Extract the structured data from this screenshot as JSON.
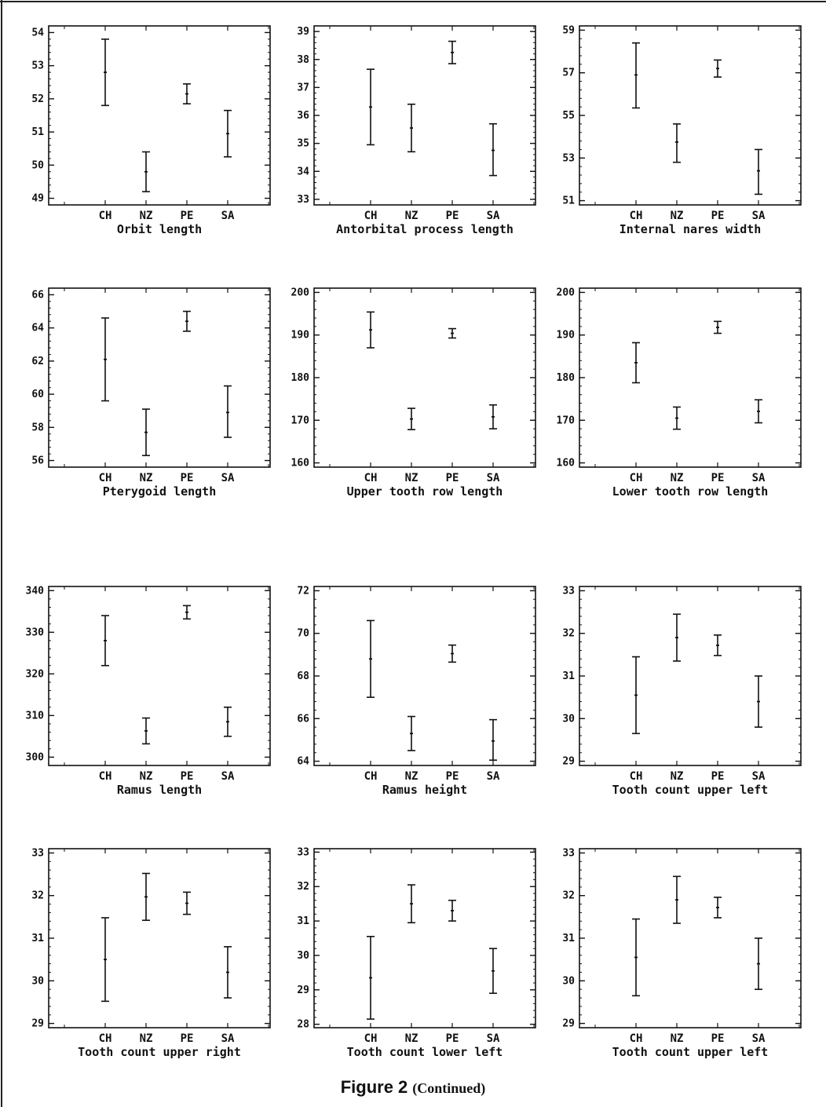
{
  "caption": {
    "title": "Figure 2",
    "suffix": "(Continued)"
  },
  "chart_data": [
    {
      "type": "errorbar",
      "xlabel": "Orbit length",
      "categories": [
        "CH",
        "NZ",
        "PE",
        "SA"
      ],
      "ylim": [
        48.8,
        54.2
      ],
      "yticks": [
        49,
        50,
        51,
        52,
        53,
        54
      ],
      "series": [
        {
          "mean": [
            52.8,
            49.8,
            52.15,
            50.95
          ],
          "low": [
            51.8,
            49.2,
            51.85,
            50.25
          ],
          "high": [
            53.8,
            50.4,
            52.45,
            51.65
          ]
        }
      ]
    },
    {
      "type": "errorbar",
      "xlabel": "Antorbital process length",
      "categories": [
        "CH",
        "NZ",
        "PE",
        "SA"
      ],
      "ylim": [
        32.8,
        39.2
      ],
      "yticks": [
        33,
        34,
        35,
        36,
        37,
        38,
        39
      ],
      "series": [
        {
          "mean": [
            36.3,
            35.55,
            38.25,
            34.75
          ],
          "low": [
            34.95,
            34.7,
            37.85,
            33.85
          ],
          "high": [
            37.65,
            36.4,
            38.65,
            35.7
          ]
        }
      ]
    },
    {
      "type": "errorbar",
      "xlabel": "Internal nares width",
      "categories": [
        "CH",
        "NZ",
        "PE",
        "SA"
      ],
      "ylim": [
        50.8,
        59.2
      ],
      "yticks": [
        51,
        53,
        55,
        57,
        59
      ],
      "series": [
        {
          "mean": [
            56.9,
            53.75,
            57.2,
            52.4
          ],
          "low": [
            55.35,
            52.8,
            56.8,
            51.3
          ],
          "high": [
            58.4,
            54.6,
            57.6,
            53.4
          ]
        }
      ]
    },
    {
      "type": "errorbar",
      "xlabel": "Pterygoid length",
      "categories": [
        "CH",
        "NZ",
        "PE",
        "SA"
      ],
      "ylim": [
        55.6,
        66.4
      ],
      "yticks": [
        56,
        58,
        60,
        62,
        64,
        66
      ],
      "series": [
        {
          "mean": [
            62.1,
            57.7,
            64.4,
            58.9
          ],
          "low": [
            59.6,
            56.3,
            63.8,
            57.4
          ],
          "high": [
            64.6,
            59.1,
            65.0,
            60.5
          ]
        }
      ]
    },
    {
      "type": "errorbar",
      "xlabel": "Upper tooth row length",
      "categories": [
        "CH",
        "NZ",
        "PE",
        "SA"
      ],
      "ylim": [
        159,
        201
      ],
      "yticks": [
        160,
        170,
        180,
        190,
        200
      ],
      "series": [
        {
          "mean": [
            191.2,
            170.3,
            190.4,
            170.8
          ],
          "low": [
            187.0,
            167.8,
            189.3,
            168.0
          ],
          "high": [
            195.4,
            172.8,
            191.5,
            173.6
          ]
        }
      ]
    },
    {
      "type": "errorbar",
      "xlabel": "Lower tooth row length",
      "categories": [
        "CH",
        "NZ",
        "PE",
        "SA"
      ],
      "ylim": [
        159,
        201
      ],
      "yticks": [
        160,
        170,
        180,
        190,
        200
      ],
      "series": [
        {
          "mean": [
            183.5,
            170.5,
            191.8,
            172.1
          ],
          "low": [
            178.8,
            167.9,
            190.4,
            169.4
          ],
          "high": [
            188.2,
            173.1,
            193.2,
            174.8
          ]
        }
      ]
    },
    {
      "type": "errorbar",
      "xlabel": "Ramus length",
      "categories": [
        "CH",
        "NZ",
        "PE",
        "SA"
      ],
      "ylim": [
        298,
        341
      ],
      "yticks": [
        300,
        310,
        320,
        330,
        340
      ],
      "series": [
        {
          "mean": [
            328.0,
            306.3,
            334.8,
            308.5
          ],
          "low": [
            322.0,
            303.2,
            333.2,
            305.0
          ],
          "high": [
            334.0,
            309.4,
            336.4,
            312.0
          ]
        }
      ]
    },
    {
      "type": "errorbar",
      "xlabel": "Ramus height",
      "categories": [
        "CH",
        "NZ",
        "PE",
        "SA"
      ],
      "ylim": [
        63.8,
        72.2
      ],
      "yticks": [
        64,
        66,
        68,
        70,
        72
      ],
      "series": [
        {
          "mean": [
            68.8,
            65.3,
            69.05,
            64.95
          ],
          "low": [
            67.0,
            64.5,
            68.65,
            64.05
          ],
          "high": [
            70.6,
            66.1,
            69.45,
            65.95
          ]
        }
      ]
    },
    {
      "type": "errorbar",
      "xlabel": "Tooth count upper left",
      "categories": [
        "CH",
        "NZ",
        "PE",
        "SA"
      ],
      "ylim": [
        28.9,
        33.1
      ],
      "yticks": [
        29,
        30,
        31,
        32,
        33
      ],
      "series": [
        {
          "mean": [
            30.55,
            31.9,
            31.72,
            30.4
          ],
          "low": [
            29.65,
            31.35,
            31.48,
            29.8
          ],
          "high": [
            31.45,
            32.45,
            31.96,
            31.0
          ]
        }
      ]
    },
    {
      "type": "errorbar",
      "xlabel": "Tooth count upper right",
      "categories": [
        "CH",
        "NZ",
        "PE",
        "SA"
      ],
      "ylim": [
        28.9,
        33.1
      ],
      "yticks": [
        29,
        30,
        31,
        32,
        33
      ],
      "series": [
        {
          "mean": [
            30.5,
            31.97,
            31.82,
            30.2
          ],
          "low": [
            29.52,
            31.42,
            31.56,
            29.6
          ],
          "high": [
            31.48,
            32.52,
            32.08,
            30.8
          ]
        }
      ]
    },
    {
      "type": "errorbar",
      "xlabel": "Tooth count lower left",
      "categories": [
        "CH",
        "NZ",
        "PE",
        "SA"
      ],
      "ylim": [
        27.9,
        33.1
      ],
      "yticks": [
        28,
        29,
        30,
        31,
        32,
        33
      ],
      "series": [
        {
          "mean": [
            29.35,
            31.5,
            31.3,
            29.55
          ],
          "low": [
            28.15,
            30.95,
            31.0,
            28.9
          ],
          "high": [
            30.55,
            32.05,
            31.6,
            30.2
          ]
        }
      ]
    },
    {
      "type": "errorbar",
      "xlabel": "Tooth count upper left",
      "categories": [
        "CH",
        "NZ",
        "PE",
        "SA"
      ],
      "ylim": [
        28.9,
        33.1
      ],
      "yticks": [
        29,
        30,
        31,
        32,
        33
      ],
      "series": [
        {
          "mean": [
            30.55,
            31.9,
            31.72,
            30.4
          ],
          "low": [
            29.65,
            31.35,
            31.48,
            29.8
          ],
          "high": [
            31.45,
            32.45,
            31.96,
            31.0
          ]
        }
      ]
    }
  ]
}
